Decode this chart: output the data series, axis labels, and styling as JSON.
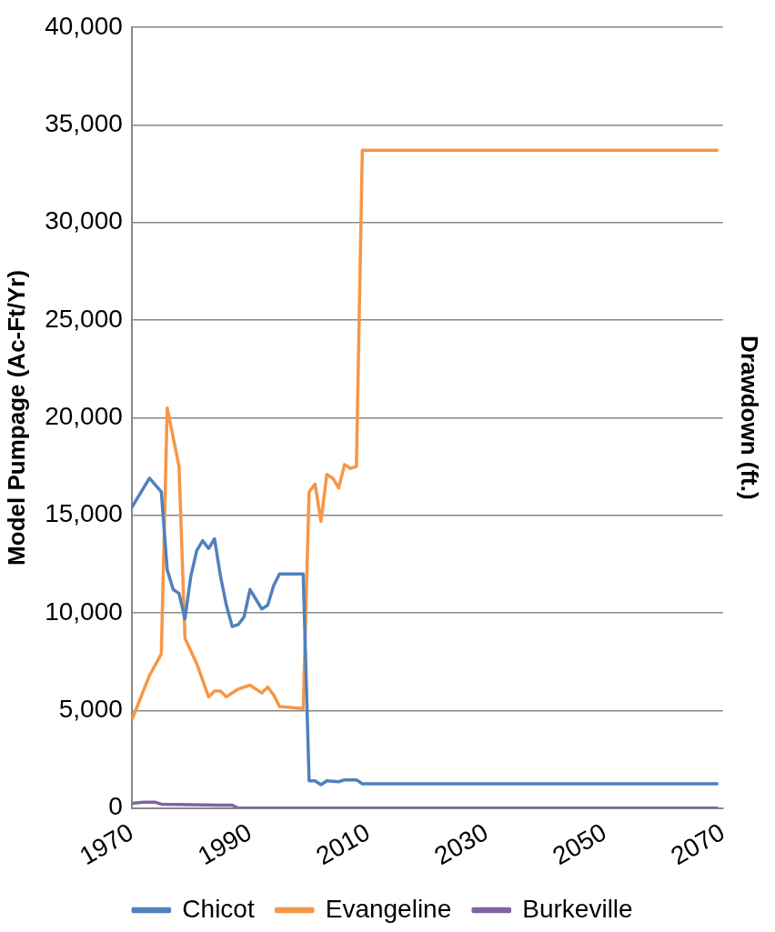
{
  "chart_data": {
    "type": "line",
    "ylabel": "Model Pumpage (Ac-Ft/Yr)",
    "y2label": "Drawdown (ft.)",
    "xlim": [
      1970,
      2070
    ],
    "xticks": [
      1970,
      1990,
      2010,
      2030,
      2050,
      2070
    ],
    "ylim": [
      0,
      40000
    ],
    "yticks": [
      0,
      {
        "value": 5000,
        "label": "5,000"
      },
      {
        "value": 10000,
        "label": "10,000"
      },
      {
        "value": 15000,
        "label": "15,000"
      },
      {
        "value": 20000,
        "label": "20,000"
      },
      {
        "value": 25000,
        "label": "25,000"
      },
      {
        "value": 30000,
        "label": "30,000"
      },
      {
        "value": 35000,
        "label": "35,000"
      },
      {
        "value": 40000,
        "label": "40,000"
      }
    ],
    "grid": "y",
    "legend": "bottom",
    "marker": "none",
    "line_style": "solid",
    "series": [
      {
        "name": "Chicot",
        "color": "#4f81bd",
        "x": [
          1970,
          1973,
          1975,
          1976,
          1977,
          1978,
          1979,
          1980,
          1981,
          1982,
          1983,
          1984,
          1985,
          1986,
          1987,
          1988,
          1989,
          1990,
          1992,
          1993,
          1994,
          1995,
          1999,
          2000,
          2001,
          2002,
          2003,
          2005,
          2006,
          2008,
          2009,
          2069
        ],
        "values": [
          15400,
          16900,
          16200,
          12200,
          11200,
          11000,
          9700,
          11900,
          13200,
          13700,
          13300,
          13800,
          11900,
          10400,
          9300,
          9400,
          9800,
          11200,
          10200,
          10400,
          11400,
          12000,
          12000,
          1400,
          1400,
          1200,
          1400,
          1350,
          1450,
          1450,
          1250,
          1250
        ]
      },
      {
        "name": "Evangeline",
        "color": "#f79646",
        "x": [
          1970,
          1973,
          1975,
          1976,
          1978,
          1979,
          1981,
          1983,
          1984,
          1985,
          1986,
          1988,
          1990,
          1992,
          1993,
          1994,
          1995,
          1999,
          2000,
          2001,
          2002,
          2003,
          2004,
          2005,
          2006,
          2007,
          2008,
          2009,
          2069
        ],
        "values": [
          4500,
          6800,
          7900,
          20500,
          17500,
          8700,
          7400,
          5700,
          6000,
          6000,
          5700,
          6100,
          6300,
          5900,
          6200,
          5800,
          5200,
          5100,
          16200,
          16600,
          14700,
          17100,
          16900,
          16400,
          17600,
          17400,
          17500,
          33700,
          33700
        ]
      },
      {
        "name": "Burkeville",
        "color": "#8064a2",
        "x": [
          1970,
          1972,
          1974,
          1975,
          1985,
          1987,
          1988,
          2069
        ],
        "values": [
          250,
          300,
          300,
          200,
          150,
          150,
          0,
          0
        ]
      }
    ]
  }
}
